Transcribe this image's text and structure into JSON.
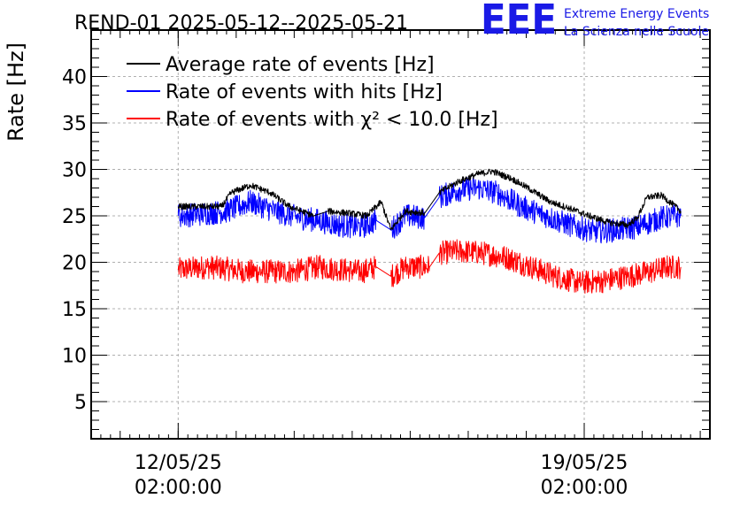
{
  "chart_data": {
    "type": "line",
    "title": "REND-01 2025-05-12--2025-05-21",
    "ylabel": "Rate [Hz]",
    "xlabel": "",
    "ylim": [
      1,
      45
    ],
    "xlim": [
      "2025-05-10 14:00:00",
      "2025-05-21 06:00:00"
    ],
    "yticks": [
      5,
      10,
      15,
      20,
      25,
      30,
      35,
      40
    ],
    "xticks": [
      {
        "at": "2025-05-12 02:00:00",
        "date": "12/05/25",
        "time": "02:00:00"
      },
      {
        "at": "2025-05-19 02:00:00",
        "date": "19/05/25",
        "time": "02:00:00"
      }
    ],
    "grid": true,
    "legend_position": "top-left",
    "logo": {
      "text": "EEE",
      "line1": "Extreme Energy Events",
      "line2": "La Scienza nelle Scuole",
      "color": "#1a1ae6"
    },
    "series": [
      {
        "name": "Average rate of events [Hz]",
        "color": "#000000",
        "points": [
          [
            "2025-05-12 02:00",
            26.0
          ],
          [
            "2025-05-12 20:00",
            26.0
          ],
          [
            "2025-05-13 00:00",
            27.5
          ],
          [
            "2025-05-13 08:00",
            28.3
          ],
          [
            "2025-05-13 16:00",
            27.5
          ],
          [
            "2025-05-14 00:00",
            26.0
          ],
          [
            "2025-05-14 10:00",
            25.0
          ],
          [
            "2025-05-14 16:00",
            25.5
          ],
          [
            "2025-05-15 00:00",
            25.3
          ],
          [
            "2025-05-15 08:00",
            25.0
          ],
          [
            "2025-05-15 14:00",
            26.5
          ],
          [
            "2025-05-15 18:00",
            23.5
          ],
          [
            "2025-05-16 00:00",
            25.5
          ],
          [
            "2025-05-16 08:00",
            25.3
          ],
          [
            "2025-05-16 14:00",
            27.5
          ],
          [
            "2025-05-16 22:00",
            28.7
          ],
          [
            "2025-05-17 06:00",
            29.5
          ],
          [
            "2025-05-17 12:00",
            29.8
          ],
          [
            "2025-05-17 20:00",
            29.0
          ],
          [
            "2025-05-18 04:00",
            27.8
          ],
          [
            "2025-05-18 12:00",
            26.5
          ],
          [
            "2025-05-18 20:00",
            25.8
          ],
          [
            "2025-05-19 04:00",
            25.0
          ],
          [
            "2025-05-19 12:00",
            24.3
          ],
          [
            "2025-05-19 20:00",
            24.0
          ],
          [
            "2025-05-20 00:00",
            24.8
          ],
          [
            "2025-05-20 04:00",
            27.0
          ],
          [
            "2025-05-20 10:00",
            27.2
          ],
          [
            "2025-05-20 18:00",
            25.5
          ]
        ]
      },
      {
        "name": "Rate of events with hits [Hz]",
        "color": "#0000ff",
        "points": [
          [
            "2025-05-12 02:00",
            25.0
          ],
          [
            "2025-05-12 12:00",
            25.2
          ],
          [
            "2025-05-12 22:00",
            25.5
          ],
          [
            "2025-05-13 08:00",
            26.5
          ],
          [
            "2025-05-13 18:00",
            25.5
          ],
          [
            "2025-05-14 04:00",
            24.8
          ],
          [
            "2025-05-14 12:00",
            24.5
          ],
          [
            "2025-05-14 20:00",
            24.0
          ],
          [
            "2025-05-15 06:00",
            23.8
          ],
          [
            "2025-05-15 12:00",
            24.5
          ],
          [
            "2025-05-15 18:00",
            23.5
          ],
          [
            "2025-05-16 00:00",
            25.0
          ],
          [
            "2025-05-16 08:00",
            24.8
          ],
          [
            "2025-05-16 14:00",
            27.0
          ],
          [
            "2025-05-16 22:00",
            27.8
          ],
          [
            "2025-05-17 06:00",
            28.0
          ],
          [
            "2025-05-17 14:00",
            27.5
          ],
          [
            "2025-05-18 00:00",
            26.0
          ],
          [
            "2025-05-18 10:00",
            25.0
          ],
          [
            "2025-05-18 20:00",
            24.0
          ],
          [
            "2025-05-19 06:00",
            23.3
          ],
          [
            "2025-05-19 16:00",
            23.5
          ],
          [
            "2025-05-20 00:00",
            23.8
          ],
          [
            "2025-05-20 10:00",
            24.8
          ],
          [
            "2025-05-20 18:00",
            25.0
          ]
        ]
      },
      {
        "name": "Rate of events with χ² < 10.0 [Hz]",
        "color": "#ff0000",
        "points": [
          [
            "2025-05-12 02:00",
            19.2
          ],
          [
            "2025-05-12 14:00",
            19.5
          ],
          [
            "2025-05-12 22:00",
            19.3
          ],
          [
            "2025-05-13 06:00",
            19.0
          ],
          [
            "2025-05-13 16:00",
            19.0
          ],
          [
            "2025-05-14 02:00",
            19.0
          ],
          [
            "2025-05-14 12:00",
            19.5
          ],
          [
            "2025-05-14 22:00",
            19.2
          ],
          [
            "2025-05-15 06:00",
            19.0
          ],
          [
            "2025-05-15 12:00",
            19.5
          ],
          [
            "2025-05-15 18:00",
            18.5
          ],
          [
            "2025-05-16 00:00",
            19.5
          ],
          [
            "2025-05-16 10:00",
            19.5
          ],
          [
            "2025-05-16 14:00",
            21.0
          ],
          [
            "2025-05-16 22:00",
            21.2
          ],
          [
            "2025-05-17 08:00",
            21.0
          ],
          [
            "2025-05-17 18:00",
            20.5
          ],
          [
            "2025-05-18 04:00",
            19.5
          ],
          [
            "2025-05-18 14:00",
            18.5
          ],
          [
            "2025-05-19 00:00",
            17.8
          ],
          [
            "2025-05-19 10:00",
            18.0
          ],
          [
            "2025-05-19 20:00",
            18.5
          ],
          [
            "2025-05-20 06:00",
            19.0
          ],
          [
            "2025-05-20 12:00",
            19.5
          ],
          [
            "2025-05-20 18:00",
            19.5
          ]
        ]
      }
    ],
    "gaps": [
      {
        "from": "2025-05-12 20:00",
        "to": "2025-05-12 22:00"
      },
      {
        "from": "2025-05-14 12:00",
        "to": "2025-05-14 16:00"
      },
      {
        "from": "2025-05-15 14:00",
        "to": "2025-05-15 16:00"
      },
      {
        "from": "2025-05-16 08:00",
        "to": "2025-05-16 14:00"
      }
    ]
  }
}
